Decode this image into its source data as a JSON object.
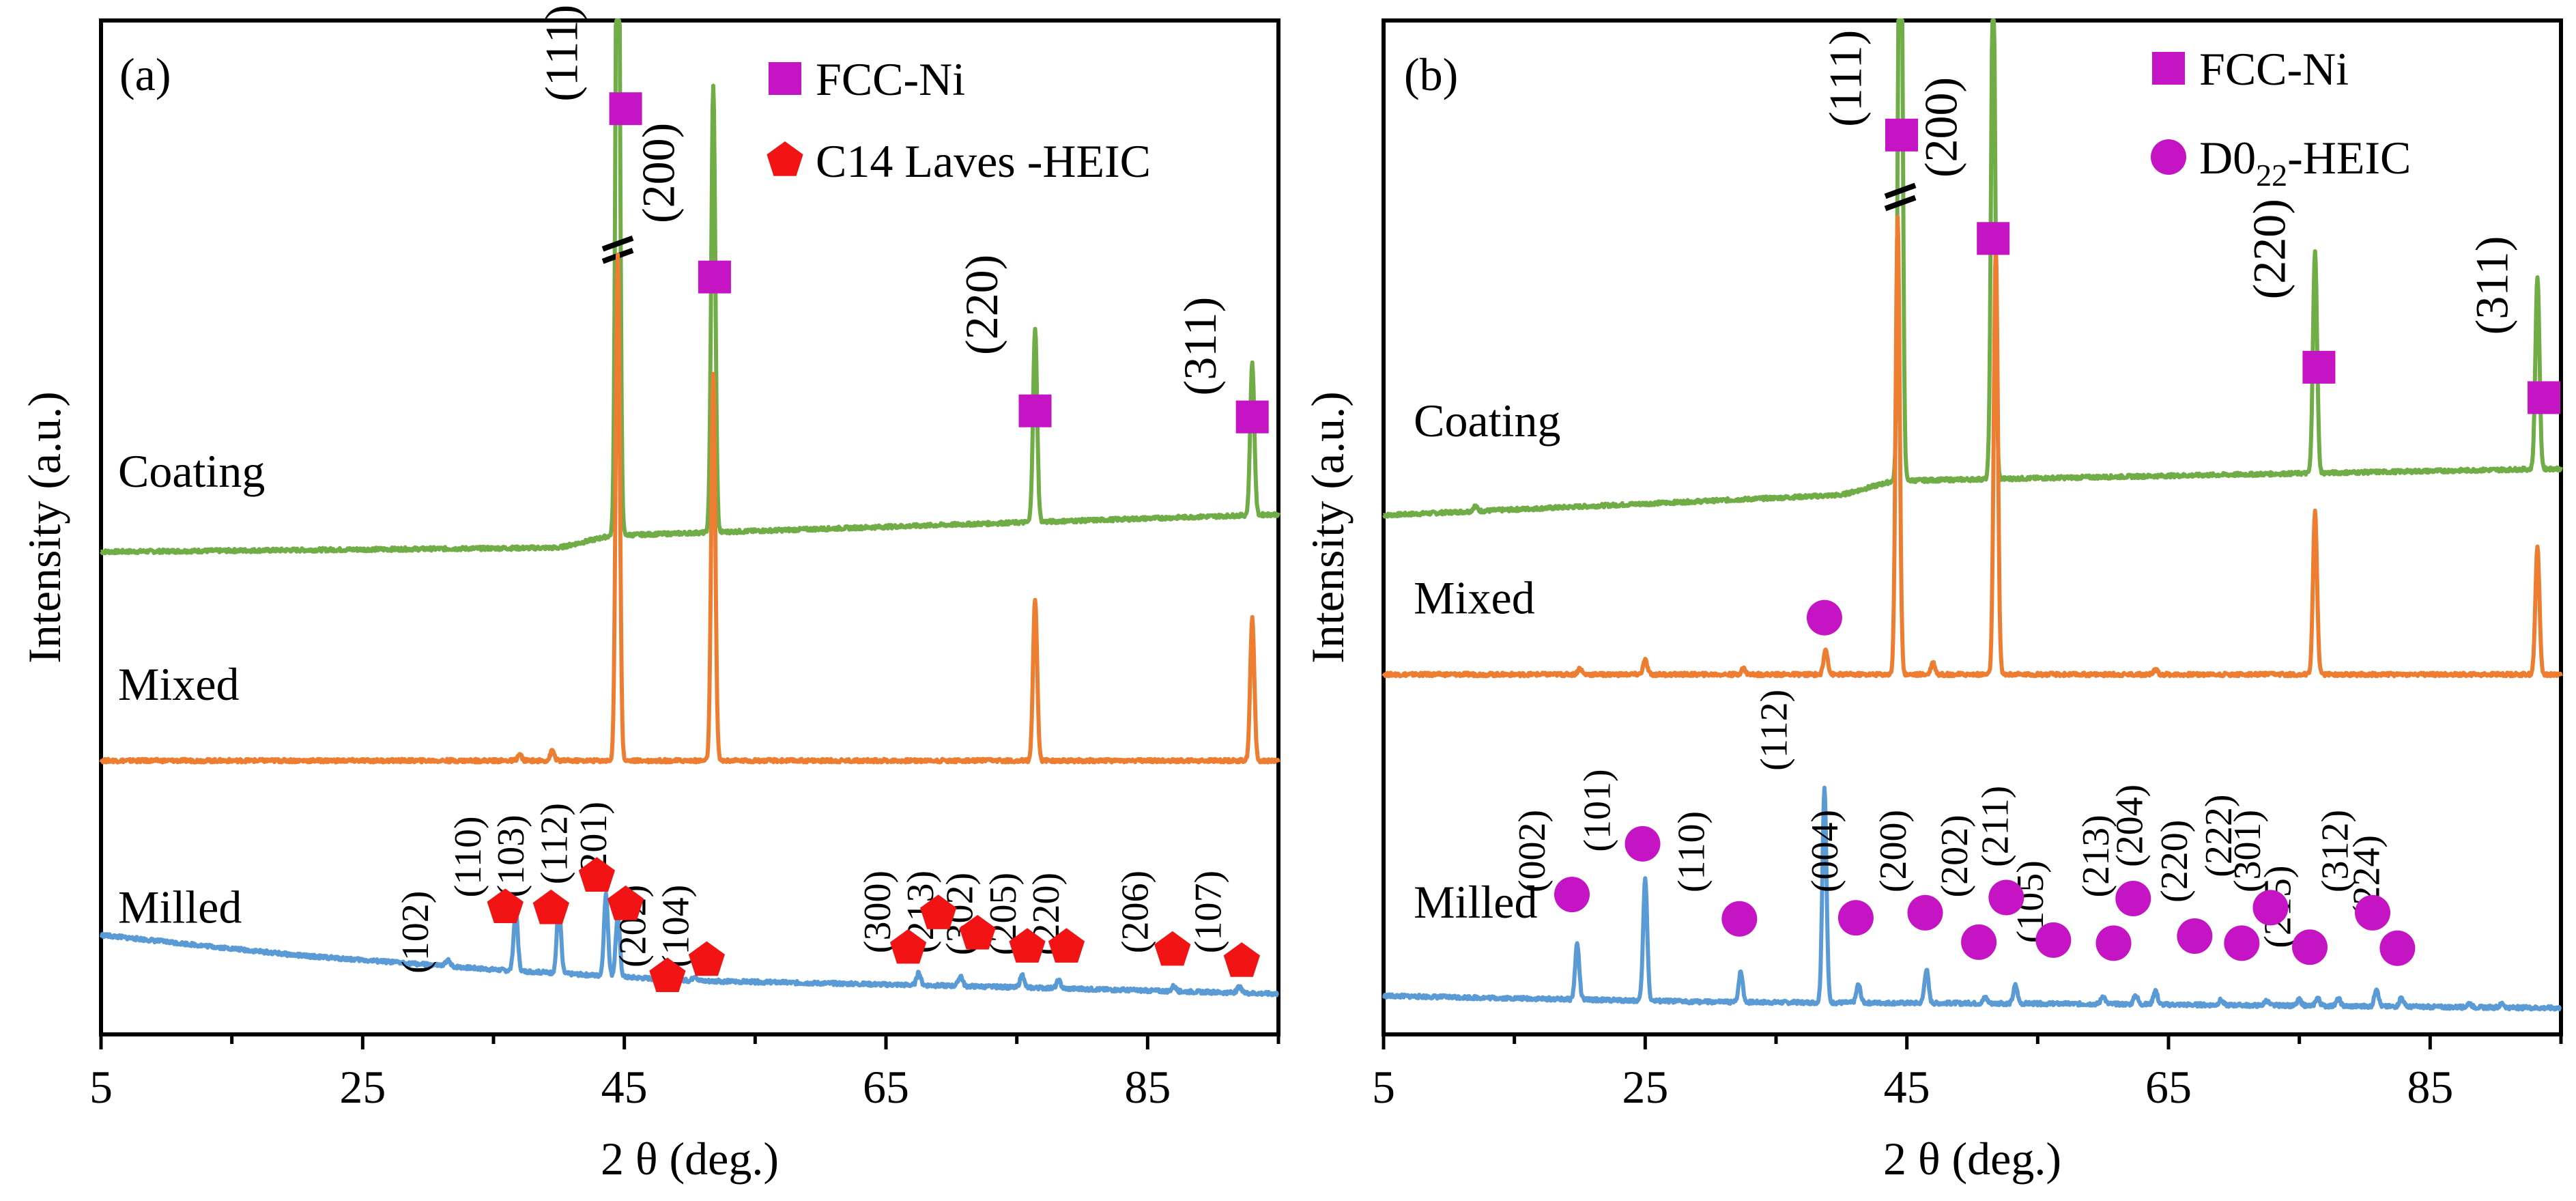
{
  "chart_data": [
    {
      "type": "line",
      "panel_label": "(a)",
      "xlabel": "2 θ (deg.)",
      "ylabel": "Intensity (a.u.)",
      "xlim": [
        5,
        95
      ],
      "xticks": [
        5,
        25,
        45,
        65,
        85
      ],
      "grid": false,
      "legend_position": "top-right",
      "legend": [
        {
          "marker": "square",
          "color": "#c414c4",
          "label": "FCC-Ni"
        },
        {
          "marker": "pentagon",
          "color": "#f21414",
          "label": "C14 Laves -HEIC"
        }
      ],
      "series": [
        {
          "name": "Coating",
          "color": "#70ad47",
          "baseline": 0.48,
          "drift": [
            [
              5,
              -0.004
            ],
            [
              40,
              0.0
            ],
            [
              44,
              0.012
            ],
            [
              95,
              0.033
            ]
          ],
          "peaks": [
            [
              44.5,
              0.8
            ],
            [
              51.8,
              0.44
            ],
            [
              76.4,
              0.19
            ],
            [
              93.0,
              0.15
            ]
          ],
          "broken_peak_at": 44.5
        },
        {
          "name": "Mixed",
          "color": "#ed7d31",
          "baseline": 0.27,
          "drift": [
            [
              5,
              0.0
            ],
            [
              95,
              0.0
            ]
          ],
          "peaks": [
            [
              37.0,
              0.006
            ],
            [
              39.5,
              0.01
            ],
            [
              44.5,
              0.5
            ],
            [
              51.8,
              0.38
            ],
            [
              76.4,
              0.16
            ],
            [
              93.0,
              0.14
            ]
          ]
        },
        {
          "name": "Milled",
          "color": "#5b9bd5",
          "baseline": 0.04,
          "drift": [
            [
              5,
              0.058
            ],
            [
              20,
              0.038
            ],
            [
              35,
              0.024
            ],
            [
              50,
              0.013
            ],
            [
              70,
              0.008
            ],
            [
              95,
              0.0
            ]
          ],
          "peaks": [
            [
              31.5,
              0.006
            ],
            [
              36.7,
              0.06
            ],
            [
              40.0,
              0.068
            ],
            [
              43.6,
              0.08
            ],
            [
              44.5,
              0.06
            ],
            [
              48.5,
              0.008
            ],
            [
              50.4,
              0.005
            ],
            [
              67.5,
              0.012
            ],
            [
              70.7,
              0.01
            ],
            [
              75.4,
              0.012
            ],
            [
              78.2,
              0.008
            ],
            [
              87.0,
              0.005
            ],
            [
              92.0,
              0.006
            ]
          ]
        }
      ],
      "annotations": [
        {
          "text": "Coating",
          "x": 5,
          "y": 0.54,
          "kind": "series-label"
        },
        {
          "text": "Mixed",
          "x": 5,
          "y": 0.33,
          "kind": "series-label"
        },
        {
          "text": "Milled",
          "x": 5,
          "y": 0.11,
          "kind": "series-label"
        },
        {
          "text": "(111)",
          "x": 41.4,
          "y": 0.92,
          "kind": "hkl"
        },
        {
          "text": "(200)",
          "x": 48.8,
          "y": 0.8,
          "kind": "hkl"
        },
        {
          "text": "(220)",
          "x": 73.5,
          "y": 0.67,
          "kind": "hkl"
        },
        {
          "text": "(311)",
          "x": 90.2,
          "y": 0.63,
          "kind": "hkl"
        },
        {
          "text": "(102)",
          "x": 30.0,
          "y": 0.06,
          "kind": "hkl"
        },
        {
          "text": "(110)",
          "x": 34.0,
          "y": 0.135,
          "kind": "hkl"
        },
        {
          "text": "(103)",
          "x": 37.3,
          "y": 0.135,
          "kind": "hkl"
        },
        {
          "text": "(112)",
          "x": 40.6,
          "y": 0.148,
          "kind": "hkl"
        },
        {
          "text": "(201)",
          "x": 43.6,
          "y": 0.148,
          "kind": "hkl"
        },
        {
          "text": "(202)",
          "x": 46.6,
          "y": 0.066,
          "kind": "hkl"
        },
        {
          "text": "(104)",
          "x": 49.9,
          "y": 0.066,
          "kind": "hkl"
        },
        {
          "text": "(300)",
          "x": 65.3,
          "y": 0.08,
          "kind": "hkl"
        },
        {
          "text": "(213)",
          "x": 68.6,
          "y": 0.08,
          "kind": "hkl"
        },
        {
          "text": "(302)",
          "x": 71.6,
          "y": 0.078,
          "kind": "hkl"
        },
        {
          "text": "(205)",
          "x": 74.9,
          "y": 0.078,
          "kind": "hkl"
        },
        {
          "text": "(220)",
          "x": 78.2,
          "y": 0.078,
          "kind": "hkl"
        },
        {
          "text": "(206)",
          "x": 85.0,
          "y": 0.08,
          "kind": "hkl"
        },
        {
          "text": "(107)",
          "x": 90.6,
          "y": 0.08,
          "kind": "hkl"
        }
      ],
      "markers": [
        {
          "phase": "FCC-Ni",
          "x": 45.1,
          "y": 0.913
        },
        {
          "phase": "FCC-Ni",
          "x": 51.9,
          "y": 0.747
        },
        {
          "phase": "FCC-Ni",
          "x": 76.4,
          "y": 0.615
        },
        {
          "phase": "FCC-Ni",
          "x": 93.0,
          "y": 0.609
        },
        {
          "phase": "C14 Laves -HEIC",
          "x": 35.9,
          "y": 0.125
        },
        {
          "phase": "C14 Laves -HEIC",
          "x": 39.4,
          "y": 0.124
        },
        {
          "phase": "C14 Laves -HEIC",
          "x": 42.9,
          "y": 0.156
        },
        {
          "phase": "C14 Laves -HEIC",
          "x": 45.1,
          "y": 0.128
        },
        {
          "phase": "C14 Laves -HEIC",
          "x": 48.3,
          "y": 0.057
        },
        {
          "phase": "C14 Laves -HEIC",
          "x": 51.3,
          "y": 0.073
        },
        {
          "phase": "C14 Laves -HEIC",
          "x": 66.7,
          "y": 0.085
        },
        {
          "phase": "C14 Laves -HEIC",
          "x": 69.0,
          "y": 0.119
        },
        {
          "phase": "C14 Laves -HEIC",
          "x": 72.0,
          "y": 0.099
        },
        {
          "phase": "C14 Laves -HEIC",
          "x": 75.8,
          "y": 0.086
        },
        {
          "phase": "C14 Laves -HEIC",
          "x": 78.8,
          "y": 0.086
        },
        {
          "phase": "C14 Laves -HEIC",
          "x": 86.9,
          "y": 0.083
        },
        {
          "phase": "C14 Laves -HEIC",
          "x": 92.2,
          "y": 0.072
        }
      ]
    },
    {
      "type": "line",
      "panel_label": "(b)",
      "xlabel": "2 θ (deg.)",
      "ylabel": "Intensity (a.u.)",
      "xlim": [
        5,
        95
      ],
      "xticks": [
        5,
        25,
        45,
        65,
        85
      ],
      "grid": false,
      "legend_position": "top-right",
      "legend": [
        {
          "marker": "square",
          "color": "#c414c4",
          "label": "FCC-Ni"
        },
        {
          "marker": "circle",
          "color": "#c414c4",
          "label": "D0",
          "subscript": "22",
          "suffix": "-HEIC"
        }
      ],
      "series": [
        {
          "name": "Coating",
          "color": "#70ad47",
          "baseline": 0.532,
          "drift": [
            [
              5,
              -0.02
            ],
            [
              40,
              0.0
            ],
            [
              44,
              0.014
            ],
            [
              95,
              0.026
            ]
          ],
          "peaks": [
            [
              12.0,
              0.005
            ],
            [
              44.5,
              0.78
            ],
            [
              51.6,
              0.52
            ],
            [
              76.2,
              0.22
            ],
            [
              93.2,
              0.19
            ]
          ],
          "broken_peak_at": 44.5
        },
        {
          "name": "Mixed",
          "color": "#ed7d31",
          "baseline": 0.355,
          "drift": [
            [
              5,
              0.0
            ],
            [
              95,
              0.0
            ]
          ],
          "peaks": [
            [
              20.0,
              0.006
            ],
            [
              25.0,
              0.014
            ],
            [
              32.5,
              0.006
            ],
            [
              38.8,
              0.025
            ],
            [
              44.3,
              0.45
            ],
            [
              47.0,
              0.012
            ],
            [
              51.8,
              0.42
            ],
            [
              64.0,
              0.005
            ],
            [
              76.2,
              0.16
            ],
            [
              93.2,
              0.125
            ]
          ]
        },
        {
          "name": "Milled",
          "color": "#5b9bd5",
          "baseline": 0.03,
          "drift": [
            [
              5,
              0.008
            ],
            [
              30,
              0.002
            ],
            [
              60,
              0.0
            ],
            [
              95,
              -0.004
            ]
          ],
          "peaks": [
            [
              19.8,
              0.055
            ],
            [
              25.0,
              0.12
            ],
            [
              32.3,
              0.03
            ],
            [
              38.7,
              0.212
            ],
            [
              41.3,
              0.018
            ],
            [
              46.5,
              0.033
            ],
            [
              51.0,
              0.006
            ],
            [
              53.3,
              0.018
            ],
            [
              60.0,
              0.008
            ],
            [
              62.5,
              0.009
            ],
            [
              64.0,
              0.014
            ],
            [
              69.0,
              0.005
            ],
            [
              72.5,
              0.005
            ],
            [
              75.0,
              0.006
            ],
            [
              76.4,
              0.008
            ],
            [
              78.0,
              0.007
            ],
            [
              80.9,
              0.018
            ],
            [
              82.8,
              0.009
            ],
            [
              88.0,
              0.004
            ],
            [
              90.5,
              0.004
            ]
          ]
        }
      ],
      "annotations": [
        {
          "text": "Coating",
          "x": 6,
          "y": 0.59,
          "kind": "series-label"
        },
        {
          "text": "Mixed",
          "x": 6,
          "y": 0.415,
          "kind": "series-label"
        },
        {
          "text": "Milled",
          "x": 6,
          "y": 0.115,
          "kind": "series-label"
        },
        {
          "text": "(111)",
          "x": 41.5,
          "y": 0.895,
          "kind": "hkl"
        },
        {
          "text": "(200)",
          "x": 48.8,
          "y": 0.845,
          "kind": "hkl"
        },
        {
          "text": "(220)",
          "x": 73.9,
          "y": 0.725,
          "kind": "hkl"
        },
        {
          "text": "(311)",
          "x": 90.9,
          "y": 0.69,
          "kind": "hkl"
        },
        {
          "text": "(002)",
          "x": 17.3,
          "y": 0.14,
          "kind": "hkl"
        },
        {
          "text": "(101)",
          "x": 22.3,
          "y": 0.18,
          "kind": "hkl"
        },
        {
          "text": "(110)",
          "x": 29.5,
          "y": 0.14,
          "kind": "hkl"
        },
        {
          "text": "(112)",
          "x": 35.8,
          "y": 0.26,
          "kind": "hkl"
        },
        {
          "text": "(004)",
          "x": 39.7,
          "y": 0.14,
          "kind": "hkl"
        },
        {
          "text": "(200)",
          "x": 44.9,
          "y": 0.14,
          "kind": "hkl"
        },
        {
          "text": "(202)",
          "x": 49.6,
          "y": 0.135,
          "kind": "hkl"
        },
        {
          "text": "(211)",
          "x": 52.7,
          "y": 0.165,
          "kind": "hkl"
        },
        {
          "text": "(105)",
          "x": 55.4,
          "y": 0.09,
          "kind": "hkl"
        },
        {
          "text": "(213)",
          "x": 60.4,
          "y": 0.135,
          "kind": "hkl"
        },
        {
          "text": "(204)",
          "x": 63.0,
          "y": 0.165,
          "kind": "hkl"
        },
        {
          "text": "(220)",
          "x": 66.4,
          "y": 0.13,
          "kind": "hkl"
        },
        {
          "text": "(222)",
          "x": 69.8,
          "y": 0.155,
          "kind": "hkl"
        },
        {
          "text": "(301)",
          "x": 72.0,
          "y": 0.14,
          "kind": "hkl"
        },
        {
          "text": "(215)",
          "x": 74.3,
          "y": 0.085,
          "kind": "hkl"
        },
        {
          "text": "(312)",
          "x": 78.7,
          "y": 0.14,
          "kind": "hkl"
        },
        {
          "text": "(224)",
          "x": 81.1,
          "y": 0.115,
          "kind": "hkl"
        }
      ],
      "markers": [
        {
          "phase": "FCC-Ni",
          "x": 44.6,
          "y": 0.887
        },
        {
          "phase": "FCC-Ni",
          "x": 51.6,
          "y": 0.785
        },
        {
          "phase": "FCC-Ni",
          "x": 76.5,
          "y": 0.658
        },
        {
          "phase": "FCC-Ni",
          "x": 93.7,
          "y": 0.628
        },
        {
          "phase": "D0",
          "x": 38.7,
          "y": 0.411
        },
        {
          "phase": "D0",
          "x": 19.4,
          "y": 0.138
        },
        {
          "phase": "D0",
          "x": 24.8,
          "y": 0.188
        },
        {
          "phase": "D0",
          "x": 32.2,
          "y": 0.114
        },
        {
          "phase": "D0",
          "x": 41.1,
          "y": 0.115
        },
        {
          "phase": "D0",
          "x": 46.4,
          "y": 0.12
        },
        {
          "phase": "D0",
          "x": 50.5,
          "y": 0.091
        },
        {
          "phase": "D0",
          "x": 52.6,
          "y": 0.135
        },
        {
          "phase": "D0",
          "x": 56.2,
          "y": 0.093
        },
        {
          "phase": "D0",
          "x": 60.8,
          "y": 0.09
        },
        {
          "phase": "D0",
          "x": 62.3,
          "y": 0.134
        },
        {
          "phase": "D0",
          "x": 67.0,
          "y": 0.097
        },
        {
          "phase": "D0",
          "x": 70.6,
          "y": 0.09
        },
        {
          "phase": "D0",
          "x": 72.8,
          "y": 0.125
        },
        {
          "phase": "D0",
          "x": 75.8,
          "y": 0.086
        },
        {
          "phase": "D0",
          "x": 80.6,
          "y": 0.12
        },
        {
          "phase": "D0",
          "x": 82.5,
          "y": 0.085
        }
      ]
    }
  ]
}
